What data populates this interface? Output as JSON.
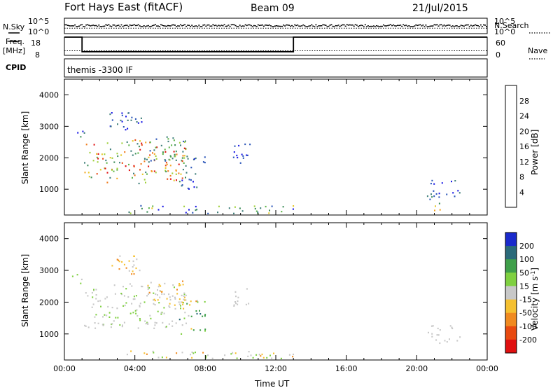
{
  "header": {
    "station": "Fort Hays East (fitACF)",
    "beam": "Beam 09",
    "date": "21/Jul/2015"
  },
  "side_labels": {
    "nsky": "N.Sky",
    "nsearch": "N.Search",
    "freq_line1": "Freq.",
    "freq_line2": "[MHz]",
    "nave": "Nave",
    "cpid": "CPID"
  },
  "cpid_text": "themis -3300 IF",
  "noise_axis": {
    "left_top": "10^5",
    "left_bottom": "10^0",
    "right_top": "10^5",
    "right_bottom": "10^0"
  },
  "freq_axis": {
    "left_top": "18",
    "left_bottom": "8",
    "right_top": "60",
    "right_bottom": "0"
  },
  "chart_data": [
    {
      "type": "heatmap",
      "panel": "power",
      "ylabel": "Slant Range [km]",
      "xlabel": "",
      "x_ticks": [
        "00:00",
        "04:00",
        "08:00",
        "12:00",
        "16:00",
        "20:00",
        "00:00"
      ],
      "y_ticks": [
        "1000",
        "2000",
        "3000",
        "4000"
      ],
      "ylim": [
        180,
        4500
      ],
      "xlim_hours": [
        0,
        24
      ],
      "colorbar": {
        "label": "Power [dB]",
        "ticks": [
          "4",
          "8",
          "12",
          "16",
          "20",
          "24",
          "28"
        ],
        "colors": [
          "#1a1ae6",
          "#2a55b8",
          "#3f7f7a",
          "#3f8f5a",
          "#5fb54a",
          "#9fd03a",
          "#e6c82a",
          "#f5a623",
          "#f07a1a",
          "#e84a14",
          "#e01010"
        ]
      },
      "regions": [
        {
          "t0": 0.3,
          "t1": 1.2,
          "r0": 2600,
          "r1": 2900,
          "v0": 0.0,
          "v1": 0.3
        },
        {
          "t0": 1.1,
          "t1": 6.9,
          "r0": 1200,
          "r1": 2600,
          "v0": 0.2,
          "v1": 1.0
        },
        {
          "t0": 4.5,
          "t1": 6.8,
          "r0": 1900,
          "r1": 2700,
          "v0": 0.1,
          "v1": 0.5
        },
        {
          "t0": 2.5,
          "t1": 4.5,
          "r0": 2900,
          "r1": 3500,
          "v0": 0.0,
          "v1": 0.3
        },
        {
          "t0": 6.5,
          "t1": 8.0,
          "r0": 1000,
          "r1": 2100,
          "v0": 0.0,
          "v1": 0.3
        },
        {
          "t0": 3.5,
          "t1": 13.0,
          "r0": 250,
          "r1": 500,
          "v0": 0.0,
          "v1": 0.6
        },
        {
          "t0": 9.5,
          "t1": 10.5,
          "r0": 1800,
          "r1": 2600,
          "v0": 0.0,
          "v1": 0.2
        },
        {
          "t0": 20.5,
          "t1": 22.5,
          "r0": 700,
          "r1": 1300,
          "v0": 0.0,
          "v1": 0.35
        },
        {
          "t0": 20.8,
          "t1": 21.5,
          "r0": 300,
          "r1": 700,
          "v0": 0.3,
          "v1": 0.7
        }
      ]
    },
    {
      "type": "heatmap",
      "panel": "velocity",
      "ylabel": "Slant Range [km]",
      "xlabel": "Time UT",
      "x_ticks": [
        "00:00",
        "04:00",
        "08:00",
        "12:00",
        "16:00",
        "20:00",
        "00:00"
      ],
      "y_ticks": [
        "1000",
        "2000",
        "3000",
        "4000"
      ],
      "ylim": [
        180,
        4500
      ],
      "xlim_hours": [
        0,
        24
      ],
      "colorbar": {
        "label": "Velocity [m s^-1]",
        "ticks": [
          "200",
          "100",
          "50",
          "15",
          "-15",
          "-50",
          "-100",
          "-200"
        ],
        "colors": [
          "#1a2acc",
          "#2a6a7a",
          "#3f9f4a",
          "#7fd040",
          "#c8c8c8",
          "#f5c030",
          "#f08a20",
          "#e84a10",
          "#e01010"
        ]
      },
      "regions": [
        {
          "t0": 0.3,
          "t1": 1.2,
          "r0": 2600,
          "r1": 2900,
          "v0": 0.4,
          "v1": 0.5
        },
        {
          "t0": 1.1,
          "t1": 6.9,
          "r0": 1200,
          "r1": 2600,
          "v0": 0.4,
          "v1": 0.55
        },
        {
          "t0": 4.5,
          "t1": 6.8,
          "r0": 1900,
          "r1": 2700,
          "v0": 0.45,
          "v1": 0.7
        },
        {
          "t0": 2.5,
          "t1": 4.5,
          "r0": 2900,
          "r1": 3500,
          "v0": 0.45,
          "v1": 0.7
        },
        {
          "t0": 6.5,
          "t1": 8.0,
          "r0": 1000,
          "r1": 2100,
          "v0": 0.2,
          "v1": 0.7
        },
        {
          "t0": 3.5,
          "t1": 13.0,
          "r0": 250,
          "r1": 500,
          "v0": 0.35,
          "v1": 0.7
        },
        {
          "t0": 9.5,
          "t1": 10.5,
          "r0": 1800,
          "r1": 2600,
          "v0": 0.45,
          "v1": 0.55
        },
        {
          "t0": 20.5,
          "t1": 22.5,
          "r0": 700,
          "r1": 1300,
          "v0": 0.47,
          "v1": 0.53
        }
      ]
    }
  ],
  "noise_series": {
    "nsky_level": 0.55,
    "nsearch_level": 0.35
  },
  "freq_series": {
    "segments_mhz": [
      {
        "t0": 0.0,
        "t1": 1.0,
        "f": 18
      },
      {
        "t0": 1.0,
        "t1": 13.0,
        "f": 10
      },
      {
        "t0": 13.0,
        "t1": 24.0,
        "f": 18
      }
    ],
    "nave_level": 0.25
  }
}
